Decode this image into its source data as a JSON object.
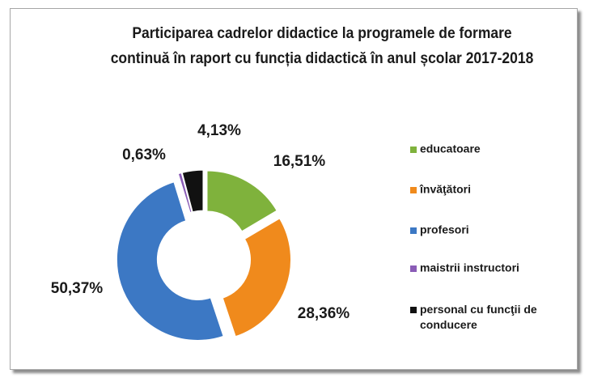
{
  "chart_data": {
    "type": "donut",
    "title": "Participarea cadrelor didactice la programele de formare continuă în raport cu funcția didactică în anul școlar 2017-2018",
    "categories": [
      "educatoare",
      "învăţători",
      "profesori",
      "maistrii instructori",
      "personal cu funcţii de conducere"
    ],
    "values": [
      16.51,
      28.36,
      50.37,
      0.63,
      4.13
    ],
    "value_labels": [
      "16,51%",
      "28,36%",
      "50,37%",
      "0,63%",
      "4,13%"
    ],
    "colors": [
      "#7fb23c",
      "#f08a1c",
      "#3c78c4",
      "#8a5cb6",
      "#111111"
    ],
    "legend": "right"
  }
}
